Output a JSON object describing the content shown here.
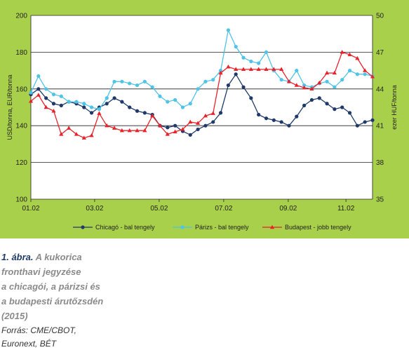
{
  "figure": {
    "number": "1. ábra.",
    "caption_lines": [
      "A kukorica",
      "fronthavi jegyzése",
      "a chicagói, a párizsi és",
      "a budapesti árutőzsdén",
      "(2015)"
    ],
    "source_lines": [
      "Forrás: CME/CBOT,",
      "Euronext, BÉT"
    ]
  },
  "colors": {
    "frame": "#a9d04a",
    "chicago": "#1f3a6a",
    "paris": "#4fc3e8",
    "budapest": "#e8222a"
  },
  "chart_data": {
    "type": "line",
    "title": "",
    "ylabel_left": "USD/tonna, EUR/tonna",
    "ylabel_right": "ezer HUF/tonna",
    "xlabel": "",
    "x_ticks": [
      "01.02",
      "03.02",
      "05.02",
      "07.02",
      "09.02",
      "11.02"
    ],
    "x_tick_weeks": [
      0,
      8.4,
      16.9,
      25.4,
      33.9,
      41.5
    ],
    "x_range_weeks": [
      0,
      45
    ],
    "ylim_left": [
      100,
      200
    ],
    "y_ticks_left": [
      100,
      120,
      140,
      160,
      180,
      200
    ],
    "ylim_right": [
      35,
      50
    ],
    "y_ticks_right": [
      35,
      38,
      41,
      44,
      47,
      50
    ],
    "grid": "horizontal",
    "legend_position": "bottom",
    "series": [
      {
        "name": "Chicagó - bal tengely",
        "axis": "left",
        "x": [
          0,
          1,
          2,
          3,
          4,
          5,
          6,
          7,
          8,
          9,
          10,
          11,
          12,
          13,
          14,
          15,
          16,
          17,
          18,
          19,
          20,
          21,
          22,
          23,
          24,
          25,
          26,
          27,
          28,
          29,
          30,
          31,
          32,
          33,
          34,
          35,
          36,
          37,
          38,
          39,
          40,
          41,
          42,
          43,
          44,
          45
        ],
        "values": [
          157,
          160,
          155,
          152,
          151,
          153,
          152,
          150,
          147,
          150,
          152,
          155,
          153,
          150,
          148,
          147,
          146,
          140,
          139,
          140,
          137,
          135,
          138,
          140,
          142,
          147,
          162,
          168,
          161,
          155,
          146,
          144,
          143,
          142,
          140,
          145,
          151,
          154,
          155,
          152,
          149,
          150,
          147,
          140,
          142,
          143
        ]
      },
      {
        "name": "Párizs - bal tengely",
        "axis": "left",
        "x": [
          0,
          1,
          2,
          3,
          4,
          5,
          6,
          7,
          8,
          9,
          10,
          11,
          12,
          13,
          14,
          15,
          16,
          17,
          18,
          19,
          20,
          21,
          22,
          23,
          24,
          25,
          26,
          27,
          28,
          29,
          30,
          31,
          32,
          33,
          34,
          35,
          36,
          37,
          38,
          39,
          40,
          41,
          42,
          43,
          44,
          45
        ],
        "values": [
          158,
          167,
          160,
          157,
          156,
          153,
          153,
          152,
          150,
          149,
          155,
          164,
          164,
          163,
          162,
          164,
          161,
          156,
          153,
          154,
          150,
          152,
          160,
          164,
          165,
          170,
          192,
          183,
          177,
          175,
          174,
          180,
          170,
          165,
          164,
          170,
          162,
          161,
          163,
          164,
          161,
          165,
          170,
          168,
          168,
          167
        ]
      },
      {
        "name": "Budapest - jobb tengely",
        "axis": "right",
        "x": [
          0,
          1,
          2,
          3,
          4,
          5,
          6,
          7,
          8,
          9,
          10,
          11,
          12,
          13,
          14,
          15,
          16,
          17,
          18,
          19,
          20,
          21,
          22,
          23,
          24,
          25,
          26,
          27,
          28,
          29,
          30,
          31,
          32,
          33,
          34,
          35,
          36,
          37,
          38,
          39,
          40,
          41,
          42,
          43,
          44,
          45
        ],
        "values": [
          43,
          43.5,
          42.5,
          42.2,
          40.3,
          40.8,
          40.3,
          40,
          40.2,
          42,
          41,
          40.8,
          40.6,
          40.6,
          40.6,
          40.6,
          41.8,
          41,
          40.3,
          40.5,
          40.7,
          41.3,
          41.2,
          41.8,
          42,
          45.3,
          45.8,
          45.6,
          45.6,
          45.6,
          45.6,
          45.6,
          45.6,
          45.6,
          44.6,
          44.3,
          44.1,
          44,
          44.5,
          45.3,
          45.3,
          47,
          46.8,
          46.5,
          45.5,
          45
        ]
      }
    ]
  }
}
